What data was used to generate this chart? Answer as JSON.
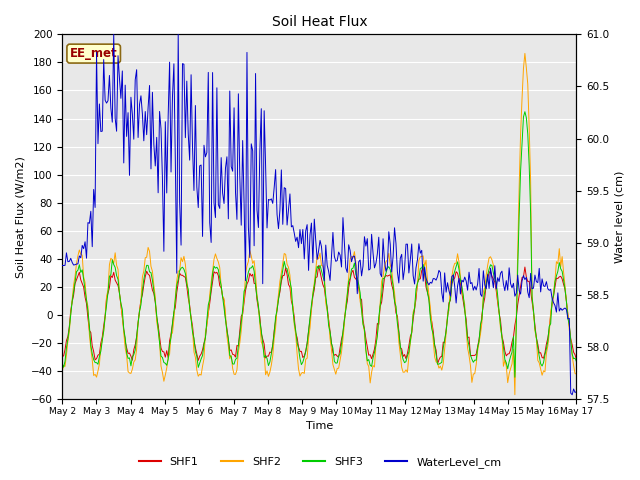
{
  "title": "Soil Heat Flux",
  "ylabel_left": "Soil Heat Flux (W/m2)",
  "ylabel_right": "Water level (cm)",
  "xlabel": "Time",
  "ylim_left": [
    -60,
    200
  ],
  "ylim_right": [
    57.5,
    61.0
  ],
  "yticks_left": [
    -60,
    -40,
    -20,
    0,
    20,
    40,
    60,
    80,
    100,
    120,
    140,
    160,
    180,
    200
  ],
  "yticks_right": [
    57.5,
    58.0,
    58.5,
    59.0,
    59.5,
    60.0,
    60.5,
    61.0
  ],
  "xtick_labels": [
    "May 2",
    "May 3",
    "May 4",
    "May 5",
    "May 6",
    "May 7",
    "May 8",
    "May 9",
    "May 10",
    "May 11",
    "May 12",
    "May 13",
    "May 14",
    "May 15",
    "May 16",
    "May 17"
  ],
  "station_label": "EE_met",
  "colors": {
    "SHF1": "#dd0000",
    "SHF2": "#ffa500",
    "SHF3": "#00cc00",
    "WaterLevel_cm": "#0000cc"
  },
  "background_color": "#e8e8e8",
  "grid_color": "#ffffff",
  "n_days": 15,
  "n_points": 360
}
